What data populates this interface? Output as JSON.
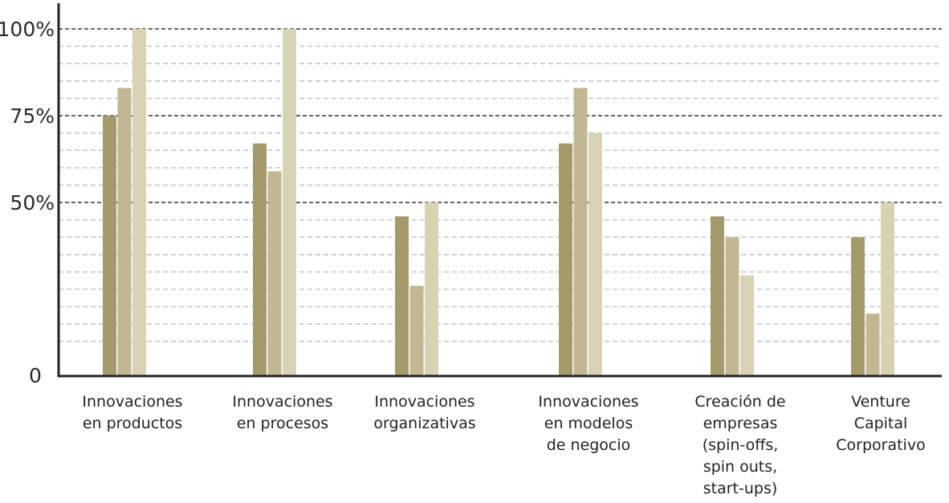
{
  "chart_data": {
    "type": "bar",
    "title": "",
    "xlabel": "",
    "ylabel": "",
    "ylim": [
      0,
      100
    ],
    "yticks": [
      "0",
      "50%",
      "75%",
      "100%"
    ],
    "grid": true,
    "legend": "none",
    "categories": [
      [
        "Innovaciones",
        "en productos"
      ],
      [
        "Innovaciones",
        "en procesos"
      ],
      [
        "Innovaciones",
        "organizativas"
      ],
      [
        "Innovaciones",
        "en modelos",
        "de negocio"
      ],
      [
        "Creación de",
        "empresas",
        "(spin-offs,",
        "spin outs,",
        "start-ups)"
      ],
      [
        "Venture",
        "Capital",
        "Corporativo"
      ]
    ],
    "series": [
      {
        "color": "#a59a6c",
        "values": [
          75,
          67,
          46,
          67,
          46,
          40
        ]
      },
      {
        "color": "#c2b792",
        "values": [
          83,
          59,
          26,
          83,
          40,
          18
        ]
      },
      {
        "color": "#d9d3b6",
        "values": [
          100,
          100,
          50,
          70,
          29,
          50
        ]
      }
    ],
    "colors": {
      "major_grid": "#666666",
      "minor_grid": "#c8c8c8",
      "axis": "#222222"
    }
  }
}
